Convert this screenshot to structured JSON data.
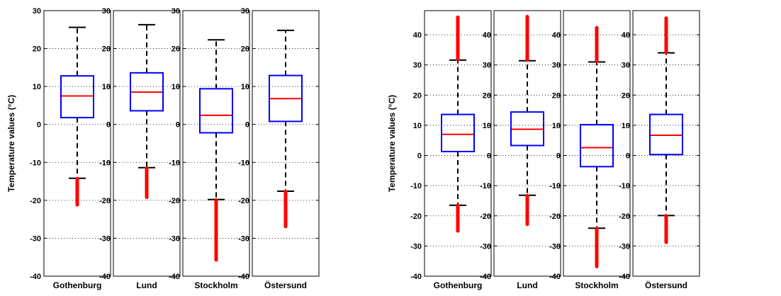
{
  "chart_data": [
    {
      "type": "box",
      "ylabel": "Temperature values (°C)",
      "ylim": [
        -40,
        30
      ],
      "yticks": [
        -40,
        -30,
        -20,
        -10,
        0,
        10,
        20,
        30
      ],
      "grid": "horizontal-dotted",
      "colors": {
        "box": "#0000ff",
        "median": "#ff0000",
        "whisker": "#000000",
        "outlier": "#ff0000"
      },
      "panels": [
        {
          "category": "Gothenburg",
          "q1": 1.8,
          "median": 7.5,
          "q3": 12.8,
          "whisker_low": -14.2,
          "whisker_high": 25.6,
          "outliers_low": [
            -14.3,
            -21.2
          ],
          "outliers_high": []
        },
        {
          "category": "Lund",
          "q1": 3.6,
          "median": 8.5,
          "q3": 13.6,
          "whisker_low": -11.4,
          "whisker_high": 26.3,
          "outliers_low": [
            -11.5,
            -19.2
          ],
          "outliers_high": []
        },
        {
          "category": "Stockholm",
          "q1": -2.2,
          "median": 2.4,
          "q3": 9.4,
          "whisker_low": -19.8,
          "whisker_high": 22.3,
          "outliers_low": [
            -19.9,
            -35.7
          ],
          "outliers_high": []
        },
        {
          "category": "Östersund",
          "q1": 0.8,
          "median": 6.8,
          "q3": 12.9,
          "whisker_low": -17.6,
          "whisker_high": 24.8,
          "outliers_low": [
            -17.7,
            -26.9
          ],
          "outliers_high": []
        }
      ]
    },
    {
      "type": "box",
      "ylabel": "Temperature values (°C)",
      "ylim": [
        -40,
        48
      ],
      "yticks": [
        -40,
        -30,
        -20,
        -10,
        0,
        10,
        20,
        30,
        40
      ],
      "grid": "horizontal-dotted",
      "colors": {
        "box": "#0000ff",
        "median": "#ff0000",
        "whisker": "#000000",
        "outlier": "#ff0000"
      },
      "panels": [
        {
          "category": "Gothenburg",
          "q1": 1.3,
          "median": 7.0,
          "q3": 13.6,
          "whisker_low": -16.5,
          "whisker_high": 31.6,
          "outliers_low": [
            -16.6,
            -25.0
          ],
          "outliers_high": [
            31.8,
            45.8
          ]
        },
        {
          "category": "Lund",
          "q1": 3.3,
          "median": 8.7,
          "q3": 14.4,
          "whisker_low": -13.2,
          "whisker_high": 31.4,
          "outliers_low": [
            -13.3,
            -22.8
          ],
          "outliers_high": [
            31.6,
            46.0
          ]
        },
        {
          "category": "Stockholm",
          "q1": -3.7,
          "median": 2.6,
          "q3": 10.2,
          "whisker_low": -24.1,
          "whisker_high": 31.0,
          "outliers_low": [
            -24.2,
            -36.8
          ],
          "outliers_high": [
            31.2,
            42.3
          ]
        },
        {
          "category": "Östersund",
          "q1": 0.3,
          "median": 6.7,
          "q3": 13.6,
          "whisker_low": -19.9,
          "whisker_high": 34.0,
          "outliers_low": [
            -20.0,
            -28.8
          ],
          "outliers_high": [
            34.2,
            45.5
          ]
        }
      ]
    }
  ]
}
